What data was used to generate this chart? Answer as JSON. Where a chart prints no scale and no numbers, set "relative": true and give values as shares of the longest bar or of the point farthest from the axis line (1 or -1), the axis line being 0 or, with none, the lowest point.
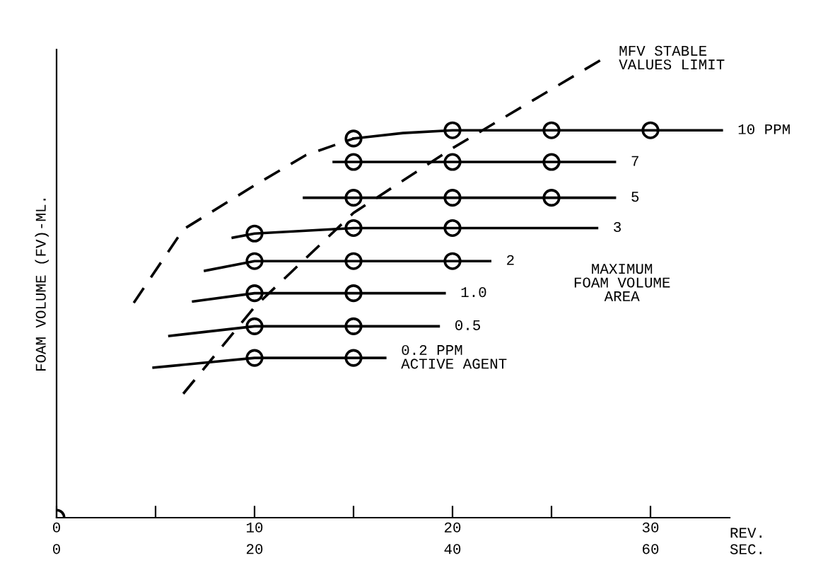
{
  "chart_data": {
    "type": "line",
    "relative": true,
    "ylabel": "FOAM VOLUME (FV)-ML.",
    "xlabel": "REV.",
    "x2label": "SEC.",
    "xlim": [
      0,
      34
    ],
    "xticks": [
      0,
      {
        "value": 5,
        "label": null
      },
      10,
      {
        "value": 15,
        "label": null
      },
      20,
      {
        "value": 25,
        "label": null
      },
      30
    ],
    "x2lim": [
      0,
      68
    ],
    "x2ticks": [
      0,
      20,
      40,
      60
    ],
    "grid": false,
    "legend": false,
    "annotations": [
      "MAXIMUM\nFOAM VOLUME\nAREA"
    ],
    "series": [
      {
        "name": "MFV STABLE\nVALUES LIMIT",
        "line_style": "dashed",
        "marker": "none",
        "color": "#000000",
        "x": [
          6.4,
          10,
          15,
          20,
          27.6
        ],
        "values": [
          0.27,
          0.459,
          0.664,
          0.805,
          1.0
        ]
      },
      {
        "line_style": "dashed",
        "marker": "none",
        "color": "#000000",
        "x": [
          3.9,
          6.4,
          10,
          12.6,
          15
        ],
        "values": [
          0.468,
          0.628,
          0.724,
          0.79,
          0.826
        ]
      },
      {
        "name": "10 PPM",
        "line_style": "solid",
        "marker": "none",
        "color": "#000000",
        "x": [
          15,
          17.5,
          20,
          25,
          30,
          33.6
        ],
        "values": [
          0.826,
          0.838,
          0.844,
          0.844,
          0.844,
          0.844
        ]
      },
      {
        "type": "scatter",
        "marker": "circle",
        "color": "#000000",
        "x": [
          15,
          20,
          25,
          30
        ],
        "values": [
          0.826,
          0.844,
          0.844,
          0.844
        ]
      },
      {
        "name": "7",
        "line_style": "solid",
        "marker": "none",
        "color": "#000000",
        "x": [
          14,
          20,
          25,
          28.2
        ],
        "values": [
          0.775,
          0.775,
          0.775,
          0.775
        ]
      },
      {
        "type": "scatter",
        "marker": "circle",
        "color": "#000000",
        "x": [
          15,
          20,
          25
        ],
        "values": [
          0.775,
          0.775,
          0.775
        ]
      },
      {
        "name": "5",
        "line_style": "solid",
        "marker": "none",
        "color": "#000000",
        "x": [
          12.5,
          15,
          20,
          25,
          28.2
        ],
        "values": [
          0.697,
          0.697,
          0.697,
          0.697,
          0.697
        ]
      },
      {
        "type": "scatter",
        "marker": "circle",
        "color": "#000000",
        "x": [
          15,
          20,
          25
        ],
        "values": [
          0.697,
          0.697,
          0.697
        ]
      },
      {
        "name": "3",
        "line_style": "solid",
        "marker": "none",
        "color": "#000000",
        "x": [
          8.9,
          10,
          15,
          20,
          27.3
        ],
        "values": [
          0.61,
          0.619,
          0.631,
          0.631,
          0.631
        ]
      },
      {
        "type": "scatter",
        "marker": "circle",
        "color": "#000000",
        "x": [
          10,
          15,
          20
        ],
        "values": [
          0.619,
          0.631,
          0.631
        ]
      },
      {
        "name": "2",
        "line_style": "solid",
        "marker": "none",
        "color": "#000000",
        "x": [
          7.5,
          10,
          15,
          20,
          21.9
        ],
        "values": [
          0.538,
          0.559,
          0.559,
          0.559,
          0.559
        ]
      },
      {
        "type": "scatter",
        "marker": "circle",
        "color": "#000000",
        "x": [
          10,
          15,
          20
        ],
        "values": [
          0.559,
          0.559,
          0.559
        ]
      },
      {
        "name": "1.0",
        "line_style": "solid",
        "marker": "none",
        "color": "#000000",
        "x": [
          6.9,
          10,
          15,
          19.6
        ],
        "values": [
          0.471,
          0.489,
          0.489,
          0.489
        ]
      },
      {
        "type": "scatter",
        "marker": "circle",
        "color": "#000000",
        "x": [
          10,
          15
        ],
        "values": [
          0.489,
          0.489
        ]
      },
      {
        "name": "0.5",
        "line_style": "solid",
        "marker": "none",
        "color": "#000000",
        "x": [
          5.7,
          10,
          15,
          19.3
        ],
        "values": [
          0.396,
          0.417,
          0.417,
          0.417
        ]
      },
      {
        "type": "scatter",
        "marker": "circle",
        "color": "#000000",
        "x": [
          10,
          15
        ],
        "values": [
          0.417,
          0.417
        ]
      },
      {
        "name": "0.2 PPM\nACTIVE AGENT",
        "line_style": "solid",
        "marker": "none",
        "color": "#000000",
        "x": [
          4.9,
          10,
          15,
          16.6
        ],
        "values": [
          0.327,
          0.348,
          0.348,
          0.348
        ]
      },
      {
        "type": "scatter",
        "marker": "circle",
        "color": "#000000",
        "x": [
          10,
          15
        ],
        "values": [
          0.348,
          0.348
        ]
      },
      {
        "type": "scatter",
        "marker": "circle",
        "color": "#000000",
        "x": [
          0
        ],
        "values": [
          0
        ]
      }
    ]
  }
}
